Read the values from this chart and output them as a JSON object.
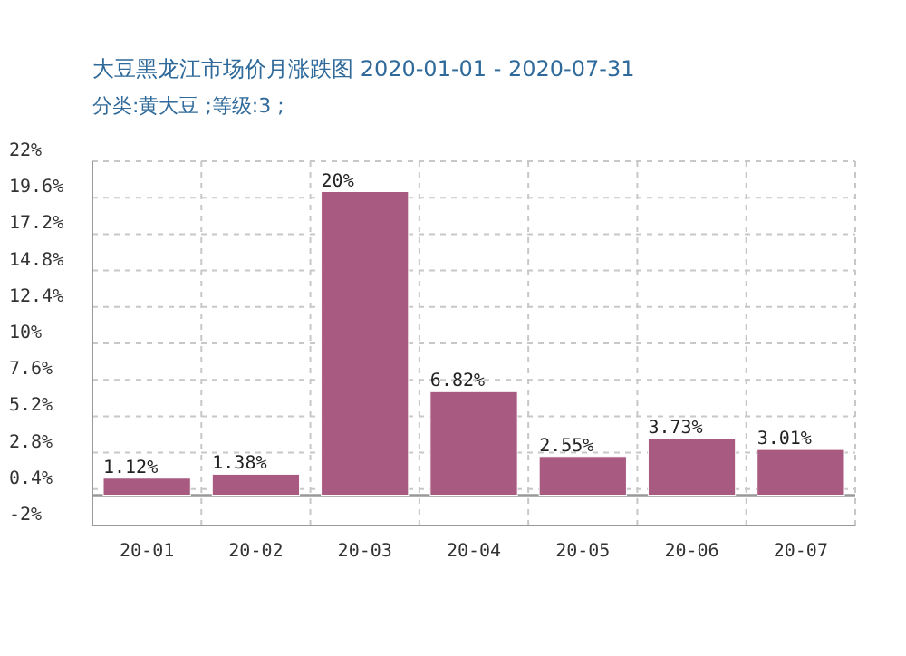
{
  "chart_data": {
    "type": "bar",
    "title": "大豆黑龙江市场价月涨跌图  2020-01-01 - 2020-07-31",
    "subtitle": "分类:黄大豆 ;等级:3 ;",
    "categories": [
      "20-01",
      "20-02",
      "20-03",
      "20-04",
      "20-05",
      "20-06",
      "20-07"
    ],
    "values": [
      1.12,
      1.38,
      20,
      6.82,
      2.55,
      3.73,
      3.01
    ],
    "color": "#a85a80",
    "ylim": [
      -2,
      22
    ],
    "yticks": [
      {
        "value": -2,
        "label": "-2%"
      },
      {
        "value": 0.4,
        "label": "0.4%"
      },
      {
        "value": 2.8,
        "label": "2.8%"
      },
      {
        "value": 5.2,
        "label": "5.2%"
      },
      {
        "value": 7.6,
        "label": "7.6%"
      },
      {
        "value": 10,
        "label": "10%"
      },
      {
        "value": 12.4,
        "label": "12.4%"
      },
      {
        "value": 14.8,
        "label": "14.8%"
      },
      {
        "value": 17.2,
        "label": "17.2%"
      },
      {
        "value": 19.6,
        "label": "19.6%"
      },
      {
        "value": 22,
        "label": "22%"
      }
    ],
    "value_labels": [
      "1.12%",
      "1.38%",
      "20%",
      "6.82%",
      "2.55%",
      "3.73%",
      "3.01%"
    ],
    "grid": true,
    "ref_lines": [
      {
        "axis": "y",
        "value": 0,
        "color": "#999999"
      }
    ]
  }
}
